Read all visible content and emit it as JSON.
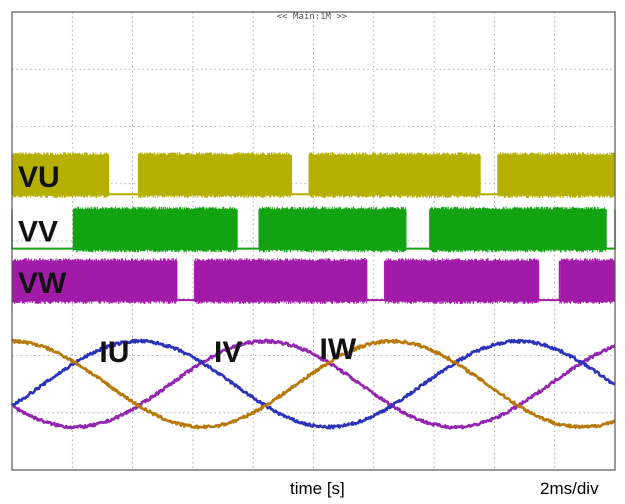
{
  "chart_data": {
    "type": "line",
    "title": "",
    "header_text": "<< Main:1M >>",
    "xlabel": "time [s]",
    "time_scale": "2ms/div",
    "divisions": {
      "x": 10,
      "y": 8
    },
    "grid": true,
    "colors": {
      "background": "#ffffff",
      "grid": "#9a9a9a",
      "border": "#555555",
      "VU": "#b5b000",
      "VV": "#12a312",
      "VW": "#a21aa8",
      "IU": "#9224b0",
      "IV": "#2b33b8",
      "IW": "#b8780a"
    },
    "digital_series": [
      {
        "name": "VU",
        "level_high": 5.5,
        "level_low": 4.8,
        "low_intervals": [
          [
            1.6,
            2.1
          ],
          [
            4.63,
            4.93
          ],
          [
            7.76,
            8.06
          ]
        ]
      },
      {
        "name": "VV",
        "level_high": 4.55,
        "level_low": 3.85,
        "low_intervals": [
          [
            -0.1,
            1.02
          ],
          [
            3.73,
            4.1
          ],
          [
            6.53,
            6.93
          ],
          [
            9.85,
            10.1
          ]
        ]
      },
      {
        "name": "VW",
        "level_high": 3.65,
        "level_low": 2.95,
        "low_intervals": [
          [
            2.73,
            3.03
          ],
          [
            5.88,
            6.18
          ],
          [
            8.73,
            9.08
          ]
        ]
      }
    ],
    "analog_series": [
      {
        "name": "IU",
        "center": 1.5,
        "amplitude": 0.75,
        "period_div": 6.3,
        "phase_deg": 210
      },
      {
        "name": "IV",
        "center": 1.5,
        "amplitude": 0.75,
        "period_div": 6.3,
        "phase_deg": 330
      },
      {
        "name": "IW",
        "center": 1.5,
        "amplitude": 0.75,
        "period_div": 6.3,
        "phase_deg": 90
      }
    ],
    "labels": [
      {
        "text": "VU",
        "x": 0.1,
        "y": 5.15
      },
      {
        "text": "VV",
        "x": 0.1,
        "y": 4.2
      },
      {
        "text": "VW",
        "x": 0.1,
        "y": 3.3
      },
      {
        "text": "IU",
        "x": 1.45,
        "y": 2.1
      },
      {
        "text": "IV",
        "x": 3.35,
        "y": 2.1
      },
      {
        "text": "IW",
        "x": 5.1,
        "y": 2.15
      }
    ]
  }
}
